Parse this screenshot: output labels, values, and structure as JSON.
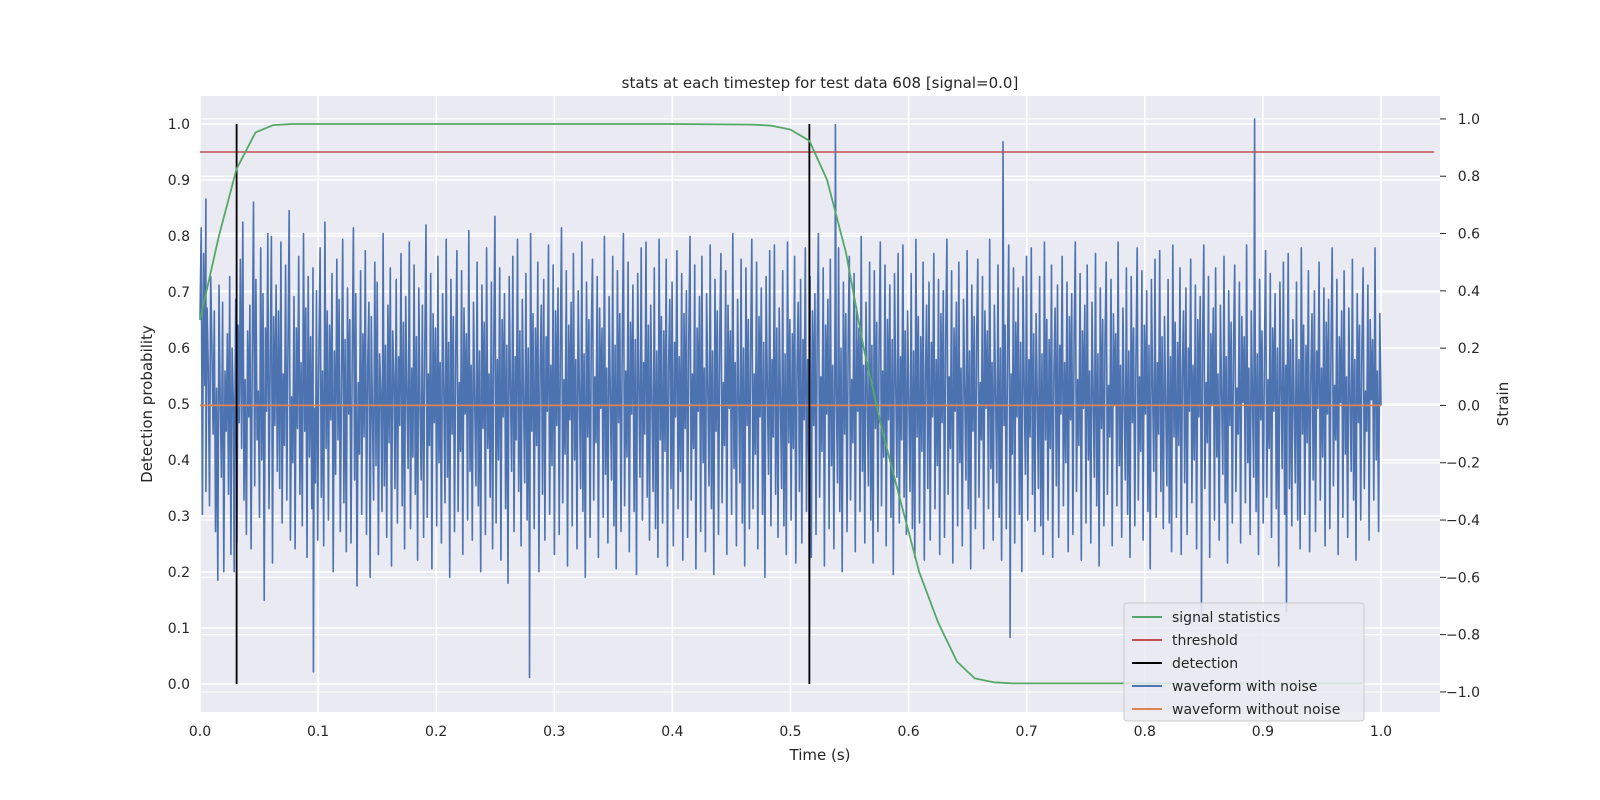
{
  "chart_data": {
    "type": "line",
    "title": "stats at each timestep for test data 608 [signal=0.0]",
    "xlabel": "Time (s)",
    "ylabel": "Detection probability",
    "ylabel_right": "Strain",
    "xlim": [
      0.0,
      1.05
    ],
    "ylim": [
      -0.05,
      1.05
    ],
    "ylim_right": [
      -1.07,
      1.08
    ],
    "xticks": [
      "0.0",
      "0.1",
      "0.2",
      "0.3",
      "0.4",
      "0.5",
      "0.6",
      "0.7",
      "0.8",
      "0.9",
      "1.0"
    ],
    "yticks": [
      "0.0",
      "0.1",
      "0.2",
      "0.3",
      "0.4",
      "0.5",
      "0.6",
      "0.7",
      "0.8",
      "0.9",
      "1.0"
    ],
    "yticks_right": [
      "−1.0",
      "−0.8",
      "−0.6",
      "−0.4",
      "−0.2",
      "0.0",
      "0.2",
      "0.4",
      "0.6",
      "0.8",
      "1.0"
    ],
    "grid": true,
    "legend_position": "lower-right",
    "series": [
      {
        "name": "signal statistics",
        "color": "#55a868",
        "axis": "left",
        "x": [
          0.0,
          0.016,
          0.031,
          0.047,
          0.062,
          0.078,
          0.1,
          0.2,
          0.3,
          0.4,
          0.469,
          0.484,
          0.5,
          0.516,
          0.531,
          0.547,
          0.562,
          0.578,
          0.594,
          0.609,
          0.625,
          0.641,
          0.656,
          0.672,
          0.688,
          0.7,
          0.8,
          0.9,
          0.984
        ],
        "values": [
          0.65,
          0.8,
          0.92,
          0.985,
          0.998,
          1.0,
          1.0,
          1.0,
          1.0,
          1.0,
          0.999,
          0.997,
          0.99,
          0.97,
          0.9,
          0.77,
          0.6,
          0.45,
          0.32,
          0.2,
          0.11,
          0.04,
          0.01,
          0.003,
          0.001,
          0.001,
          0.001,
          0.001,
          0.001
        ]
      },
      {
        "name": "threshold",
        "color": "#c44e52",
        "axis": "left",
        "x": [
          0.0,
          1.045
        ],
        "values": [
          0.95,
          0.95
        ]
      },
      {
        "name": "detection",
        "color": "#000000",
        "axis": "left",
        "vlines": [
          0.031,
          0.516
        ],
        "range": [
          0.0,
          1.0
        ]
      },
      {
        "name": "waveform with noise",
        "color": "#4c72b0",
        "axis": "right",
        "x_start": 0.0,
        "x_end": 1.0,
        "values": [
          0.3,
          0.62,
          -0.38,
          0.53,
          0.07,
          -0.3,
          0.34,
          0.13,
          -0.35,
          0.45,
          0.21,
          -0.1,
          0.33,
          -0.44,
          0.06,
          -0.61,
          0.42,
          0.02,
          -0.25,
          0.36,
          -0.58,
          0.12,
          -0.09,
          0.25,
          -0.31,
          0.45,
          -0.52,
          0.2,
          0.01,
          -0.22,
          0.37,
          -0.48,
          0.28,
          -0.06,
          0.51,
          -0.15,
          0.64,
          -0.33,
          0.09,
          -0.45,
          0.26,
          -0.04,
          0.35,
          -0.5,
          0.18,
          0.71,
          -0.28,
          0.44,
          -0.12,
          0.05,
          -0.39,
          0.55,
          -0.19,
          0.39,
          -0.68,
          0.27,
          -0.02,
          0.6,
          -0.36,
          0.16,
          0.59,
          -0.55,
          0.31,
          -0.07,
          0.42,
          -0.23,
          0.33,
          -0.29,
          0.57,
          -0.41,
          0.11,
          -0.14,
          0.49,
          -0.33,
          0.22,
          0.68,
          -0.47,
          0.03,
          -0.2,
          0.38,
          -0.5,
          0.27,
          -0.08,
          0.52,
          -0.31,
          0.15,
          -0.42,
          0.6,
          -0.09,
          0.34,
          -0.53,
          0.45,
          -0.18,
          0.24,
          -0.36,
          0.48,
          -0.01,
          -0.27,
          0.4,
          -0.47,
          0.2,
          0.55,
          -0.32,
          0.12,
          -0.49,
          0.64,
          -0.15,
          0.33,
          -0.4,
          0.28,
          -0.05,
          0.46,
          -0.58,
          0.19,
          -0.24,
          0.51,
          -0.12,
          0.37,
          -0.44,
          0.07,
          0.58,
          -0.34,
          0.23,
          -0.51,
          0.41,
          -0.03,
          0.3,
          -0.48,
          0.16,
          0.62,
          -0.26,
          0.39,
          -0.63,
          0.08,
          -0.17,
          0.47,
          -0.38,
          0.25,
          -0.11,
          0.54,
          -0.45,
          0.14,
          0.36,
          -0.6,
          0.31,
          -0.02,
          -0.33,
          0.5,
          -0.21,
          0.43,
          -0.52,
          0.18,
          0.05,
          -0.37,
          0.6,
          -0.28,
          0.21,
          -0.46,
          0.35,
          -0.13,
          0.48,
          -0.56,
          0.26,
          0.1,
          -0.29,
          0.44,
          -0.41,
          0.17,
          -0.07,
          0.53,
          -0.35,
          0.29,
          -0.5,
          0.38,
          0.04,
          -0.22,
          0.57,
          -0.43,
          0.13,
          -0.18,
          0.49,
          -0.31,
          0.24,
          -0.54,
          0.41,
          0.0,
          -0.26,
          0.35,
          -0.46,
          0.2,
          0.63,
          -0.39,
          0.11,
          -0.14,
          0.46,
          -0.57,
          0.32,
          -0.06,
          0.27,
          -0.42,
          0.52,
          -0.2,
          0.15,
          -0.48,
          0.39,
          0.06,
          -0.34,
          0.58,
          -0.25,
          0.22,
          -0.6,
          0.44,
          -0.1,
          0.31,
          -0.44,
          0.18,
          0.54,
          -0.37,
          0.08,
          -0.16,
          0.47,
          -0.52,
          0.34,
          -0.03,
          0.25,
          -0.4,
          0.61,
          -0.23,
          0.14,
          -0.47,
          0.36,
          0.02,
          -0.28,
          0.5,
          -0.35,
          0.19,
          -0.58,
          0.42,
          -0.08,
          0.29,
          -0.45,
          0.55,
          -0.15,
          0.11,
          -0.32,
          0.43,
          -0.5,
          0.23,
          0.66,
          -0.41,
          0.16,
          -0.19,
          0.48,
          -0.54,
          0.3,
          -0.04,
          0.39,
          -0.36,
          0.21,
          -0.62,
          0.45,
          0.07,
          -0.23,
          0.52,
          -0.44,
          0.17,
          -0.12,
          0.58,
          -0.3,
          0.26,
          -0.49,
          0.37,
          0.03,
          -0.27,
          0.46,
          -0.4,
          0.2,
          -0.55,
          0.6,
          -0.09,
          0.32,
          -0.43,
          0.27,
          -0.14,
          0.5,
          -0.58,
          0.12,
          0.35,
          -0.31,
          0.44,
          -0.47,
          0.24,
          -0.02,
          0.56,
          -0.38,
          0.14,
          -0.21,
          0.49,
          -0.52,
          0.33,
          -0.07,
          0.41,
          -0.45,
          0.22,
          0.62,
          -0.34,
          0.09,
          -0.17,
          0.47,
          -0.56,
          0.28,
          -0.05,
          0.36,
          -0.42,
          0.53,
          -0.19,
          0.16,
          -0.5,
          0.4,
          0.05,
          -0.29,
          0.57,
          -0.37,
          0.18,
          -0.6,
          0.43,
          -0.11,
          0.3,
          -0.46,
          0.25,
          0.51,
          -0.33,
          0.1,
          -0.13,
          0.45,
          -0.53,
          0.34,
          -0.01,
          0.27,
          -0.39,
          0.59,
          -0.24,
          0.13,
          -0.48,
          0.38,
          0.04,
          -0.26,
          0.52,
          -0.42,
          0.21,
          -0.57,
          0.47,
          -0.06,
          0.32,
          -0.44,
          0.2,
          0.6,
          -0.35,
          0.12,
          -0.18,
          0.5,
          -0.51,
          0.29,
          -0.03,
          0.42,
          -0.37,
          0.23,
          -0.59,
          0.46,
          0.08,
          -0.25,
          0.55,
          -0.4,
          0.15,
          -0.1,
          0.57,
          -0.32,
          0.28,
          -0.47,
          0.35,
          0.01,
          -0.3,
          0.48,
          -0.43,
          0.19,
          -0.53,
          0.58,
          -0.12,
          0.31,
          -0.41,
          0.26,
          -0.16,
          0.51,
          -0.56,
          0.14,
          0.37,
          -0.29,
          0.43,
          -0.49,
          0.22,
          -0.04,
          0.54,
          -0.36,
          0.17,
          -0.23,
          0.46,
          -0.54,
          0.32,
          -0.08,
          0.4,
          -0.46,
          0.24,
          0.59,
          -0.33,
          0.11,
          -0.15,
          0.49,
          -0.57,
          0.27,
          -0.02,
          0.38,
          -0.44,
          0.52,
          -0.2,
          0.13,
          -0.51,
          0.39,
          0.06,
          -0.28,
          0.56,
          -0.36,
          0.19,
          -0.59,
          0.44,
          -0.09,
          0.33,
          -0.45,
          0.23,
          0.53,
          -0.34,
          0.08,
          -0.14,
          0.47,
          -0.52,
          0.35,
          -0.01,
          0.26,
          -0.38,
          0.6,
          -0.22,
          0.15,
          -0.49,
          0.37,
          0.03,
          -0.27,
          0.51,
          -0.41,
          0.2,
          -0.56,
          0.48,
          -0.07,
          0.3,
          -0.43,
          0.19,
          0.58,
          -0.36,
          0.11,
          -0.17,
          0.5,
          -0.5,
          0.31,
          -0.04,
          0.41,
          -0.38,
          0.22,
          -0.6,
          0.45,
          0.07,
          -0.24,
          0.54,
          -0.42,
          0.16,
          -0.11,
          0.56,
          -0.31,
          0.27,
          -0.46,
          0.34,
          0.02,
          -0.29,
          0.47,
          -0.42,
          0.18,
          -0.52,
          0.57,
          -0.13,
          0.3,
          -0.4,
          0.25,
          -0.15,
          0.52,
          -0.55,
          0.13,
          0.36,
          -0.3,
          0.44,
          -0.48,
          0.23,
          -0.05,
          0.55,
          -0.37,
          0.16,
          -0.22,
          0.45,
          -0.53,
          0.33,
          -0.07,
          0.39,
          -0.45,
          0.25,
          0.6,
          -0.32,
          0.1,
          -0.16,
          0.48,
          -0.56,
          0.28,
          -0.03,
          0.37,
          -0.43,
          0.51,
          -0.21,
          0.14,
          -0.5,
          0.38,
          0.05,
          -0.27,
          0.55,
          -0.37,
          0.2,
          -0.58,
          0.43,
          -0.1,
          0.32,
          -0.44,
          0.24,
          0.52,
          -0.33,
          0.09,
          -0.13,
          0.46,
          -0.51,
          0.34,
          -0.02,
          0.27,
          -0.37,
          0.59,
          -0.23,
          0.14,
          -0.48,
          0.36,
          0.04,
          -0.28,
          0.5,
          -0.4,
          0.21,
          -0.55,
          0.47,
          -0.08,
          0.29,
          -0.44,
          0.2,
          0.57,
          -0.35,
          0.12,
          -0.18,
          0.49,
          -0.49,
          0.3,
          -0.05,
          0.42,
          -0.39,
          0.23,
          -0.59,
          0.46,
          0.08,
          -0.25,
          0.53,
          -0.41,
          0.17,
          -0.12,
          0.56,
          -0.32,
          0.26,
          -0.45,
          0.33,
          0.01,
          -0.3,
          0.46,
          -0.43,
          0.19,
          -0.53,
          0.58,
          -0.11,
          0.31,
          -0.41,
          0.24,
          -0.16,
          0.5,
          -0.54,
          0.12,
          0.35,
          -0.29,
          0.43,
          -0.47,
          0.22,
          -0.04,
          0.53,
          -0.36,
          0.16,
          -0.21,
          0.44,
          -0.52,
          0.32,
          -0.06,
          0.4,
          -0.46,
          0.24,
          0.58,
          -0.31,
          0.1,
          -0.15,
          0.47,
          -0.55,
          0.27,
          -0.02,
          0.36,
          -0.42,
          0.5,
          -0.2,
          0.13,
          -0.49,
          0.37,
          0.06,
          -0.26,
          0.54,
          -0.36,
          0.19,
          -0.57,
          0.42,
          -0.09,
          0.31,
          -0.43,
          0.23,
          0.51,
          -0.32,
          0.08,
          -0.12,
          0.45,
          -0.5,
          0.33,
          -0.01,
          0.26,
          -0.36,
          0.58,
          -0.22,
          0.15,
          -0.47,
          0.35,
          0.03,
          -0.27,
          0.49,
          -0.39,
          0.2,
          -0.54,
          0.46,
          -0.07,
          0.28,
          -0.43,
          0.19,
          0.56,
          -0.34,
          0.11,
          -0.17,
          0.48,
          -0.48,
          0.29,
          -0.04,
          0.41,
          -0.38,
          0.22,
          -0.58,
          0.45,
          0.07,
          -0.24,
          0.52,
          -0.4,
          0.16,
          -0.11,
          0.55,
          -0.31,
          0.25,
          -0.44,
          0.32,
          0.02,
          -0.29,
          0.45,
          -0.42,
          0.18,
          -0.52,
          0.57,
          -0.12,
          0.3,
          -0.4,
          0.23,
          -0.15,
          0.49,
          -0.53,
          0.11,
          0.34,
          -0.28,
          0.42,
          -0.46,
          0.21,
          -0.03,
          0.52,
          -0.35,
          0.15,
          -0.2,
          0.43,
          -0.51,
          0.31,
          -0.05,
          0.39,
          -0.45,
          0.23,
          0.57,
          -0.3,
          0.09,
          -0.14,
          0.46,
          -0.54,
          0.26,
          -0.01,
          0.35,
          -0.41,
          0.49,
          -0.19,
          0.12,
          -0.48,
          0.36,
          0.05,
          -0.25,
          0.53,
          -0.35,
          0.18,
          -0.56,
          0.41,
          -0.08,
          0.3,
          -0.42,
          0.22,
          0.5,
          -0.31,
          0.07,
          -0.11,
          0.44,
          -0.49,
          0.32,
          0.0,
          0.25,
          -0.35,
          0.57,
          -0.21,
          0.14,
          -0.46,
          0.34,
          0.02,
          -0.26,
          0.48,
          -0.38,
          0.19,
          -0.53,
          0.45,
          -0.06,
          0.27,
          -0.42,
          0.18,
          0.55,
          -0.33,
          0.1,
          -0.16,
          0.47,
          -0.47,
          0.28,
          -0.03,
          0.4,
          -0.37,
          0.21,
          -0.57,
          0.44,
          0.06,
          -0.23,
          0.51,
          -0.39,
          0.15,
          -0.1,
          0.54,
          -0.3,
          0.24,
          -0.43,
          0.31,
          0.01,
          -0.28,
          0.44,
          -0.41,
          0.17,
          -0.51,
          0.56,
          -0.11,
          0.29,
          -0.39,
          0.22,
          -0.14,
          0.48,
          -0.52,
          0.1,
          0.33,
          -0.27,
          0.41,
          -0.45,
          0.2,
          -0.02,
          0.51,
          -0.34,
          0.14,
          -0.19,
          0.42,
          -0.5,
          0.3,
          -0.04,
          0.38,
          -0.44,
          0.22,
          0.56,
          -0.29,
          0.08,
          -0.13,
          0.45,
          -0.53,
          0.25,
          0.0,
          0.34,
          -0.4,
          0.48,
          -0.18,
          0.11,
          -0.47,
          0.35,
          0.04,
          -0.24,
          0.52,
          -0.34,
          0.17,
          -0.55,
          0.4,
          -0.07,
          0.29,
          -0.41,
          0.21,
          0.49,
          -0.3,
          0.06,
          -0.1,
          0.43,
          -0.48,
          0.31,
          0.01,
          0.24,
          -0.34,
          0.56,
          -0.2,
          0.13,
          -0.45,
          0.33,
          0.01,
          -0.25,
          0.47,
          -0.37,
          0.18,
          -0.52,
          0.44,
          -0.05,
          0.26,
          -0.41,
          0.17,
          0.54,
          -0.32,
          0.09,
          -0.15,
          0.46,
          -0.46,
          0.27,
          -0.02,
          0.39,
          -0.36,
          0.2,
          -0.56,
          0.43,
          0.05,
          -0.22,
          0.5,
          -0.38,
          0.14,
          -0.09,
          0.53,
          -0.29,
          0.23,
          -0.42,
          0.3,
          0.0,
          -0.27,
          0.43,
          -0.4,
          0.16,
          -0.5,
          0.55,
          -0.1,
          0.28,
          -0.38,
          0.21,
          -0.13,
          0.47,
          -0.51,
          0.09,
          0.32,
          -0.26,
          0.4,
          -0.44,
          0.19,
          -0.01,
          0.5,
          -0.33,
          0.13,
          -0.18,
          0.41,
          -0.49,
          0.29,
          -0.03,
          0.37,
          -0.43,
          0.21,
          0.55,
          -0.28,
          0.07,
          -0.12,
          0.44,
          -0.52,
          0.24,
          0.01,
          0.33,
          -0.39,
          0.47,
          -0.17,
          0.1,
          -0.46,
          0.34,
          0.03,
          -0.23,
          0.51,
          -0.33,
          0.16,
          -0.54,
          0.39,
          -0.06,
          0.28,
          -0.4,
          0.2,
          0.48,
          -0.29,
          0.05,
          -0.09,
          0.42,
          -0.47,
          0.3,
          0.02,
          0.23,
          -0.33,
          0.55,
          -0.19,
          0.12,
          -0.44,
          0.32,
          0.0
        ],
        "spikes": [
          {
            "x": 0.005,
            "value": 0.72
          },
          {
            "x": 0.029,
            "value": -0.58
          },
          {
            "x": 0.096,
            "value": -0.93
          },
          {
            "x": 0.279,
            "value": -0.95
          },
          {
            "x": 0.516,
            "value": -0.8
          },
          {
            "x": 0.538,
            "value": 0.98
          },
          {
            "x": 0.68,
            "value": 0.92
          },
          {
            "x": 0.686,
            "value": -0.81
          },
          {
            "x": 0.848,
            "value": -0.75
          },
          {
            "x": 0.893,
            "value": 1.0
          },
          {
            "x": 0.92,
            "value": -0.72
          }
        ]
      },
      {
        "name": "waveform without noise",
        "color": "#dd8452",
        "axis": "right",
        "x": [
          0.0,
          1.0
        ],
        "values": [
          0.0,
          0.0
        ]
      }
    ]
  }
}
